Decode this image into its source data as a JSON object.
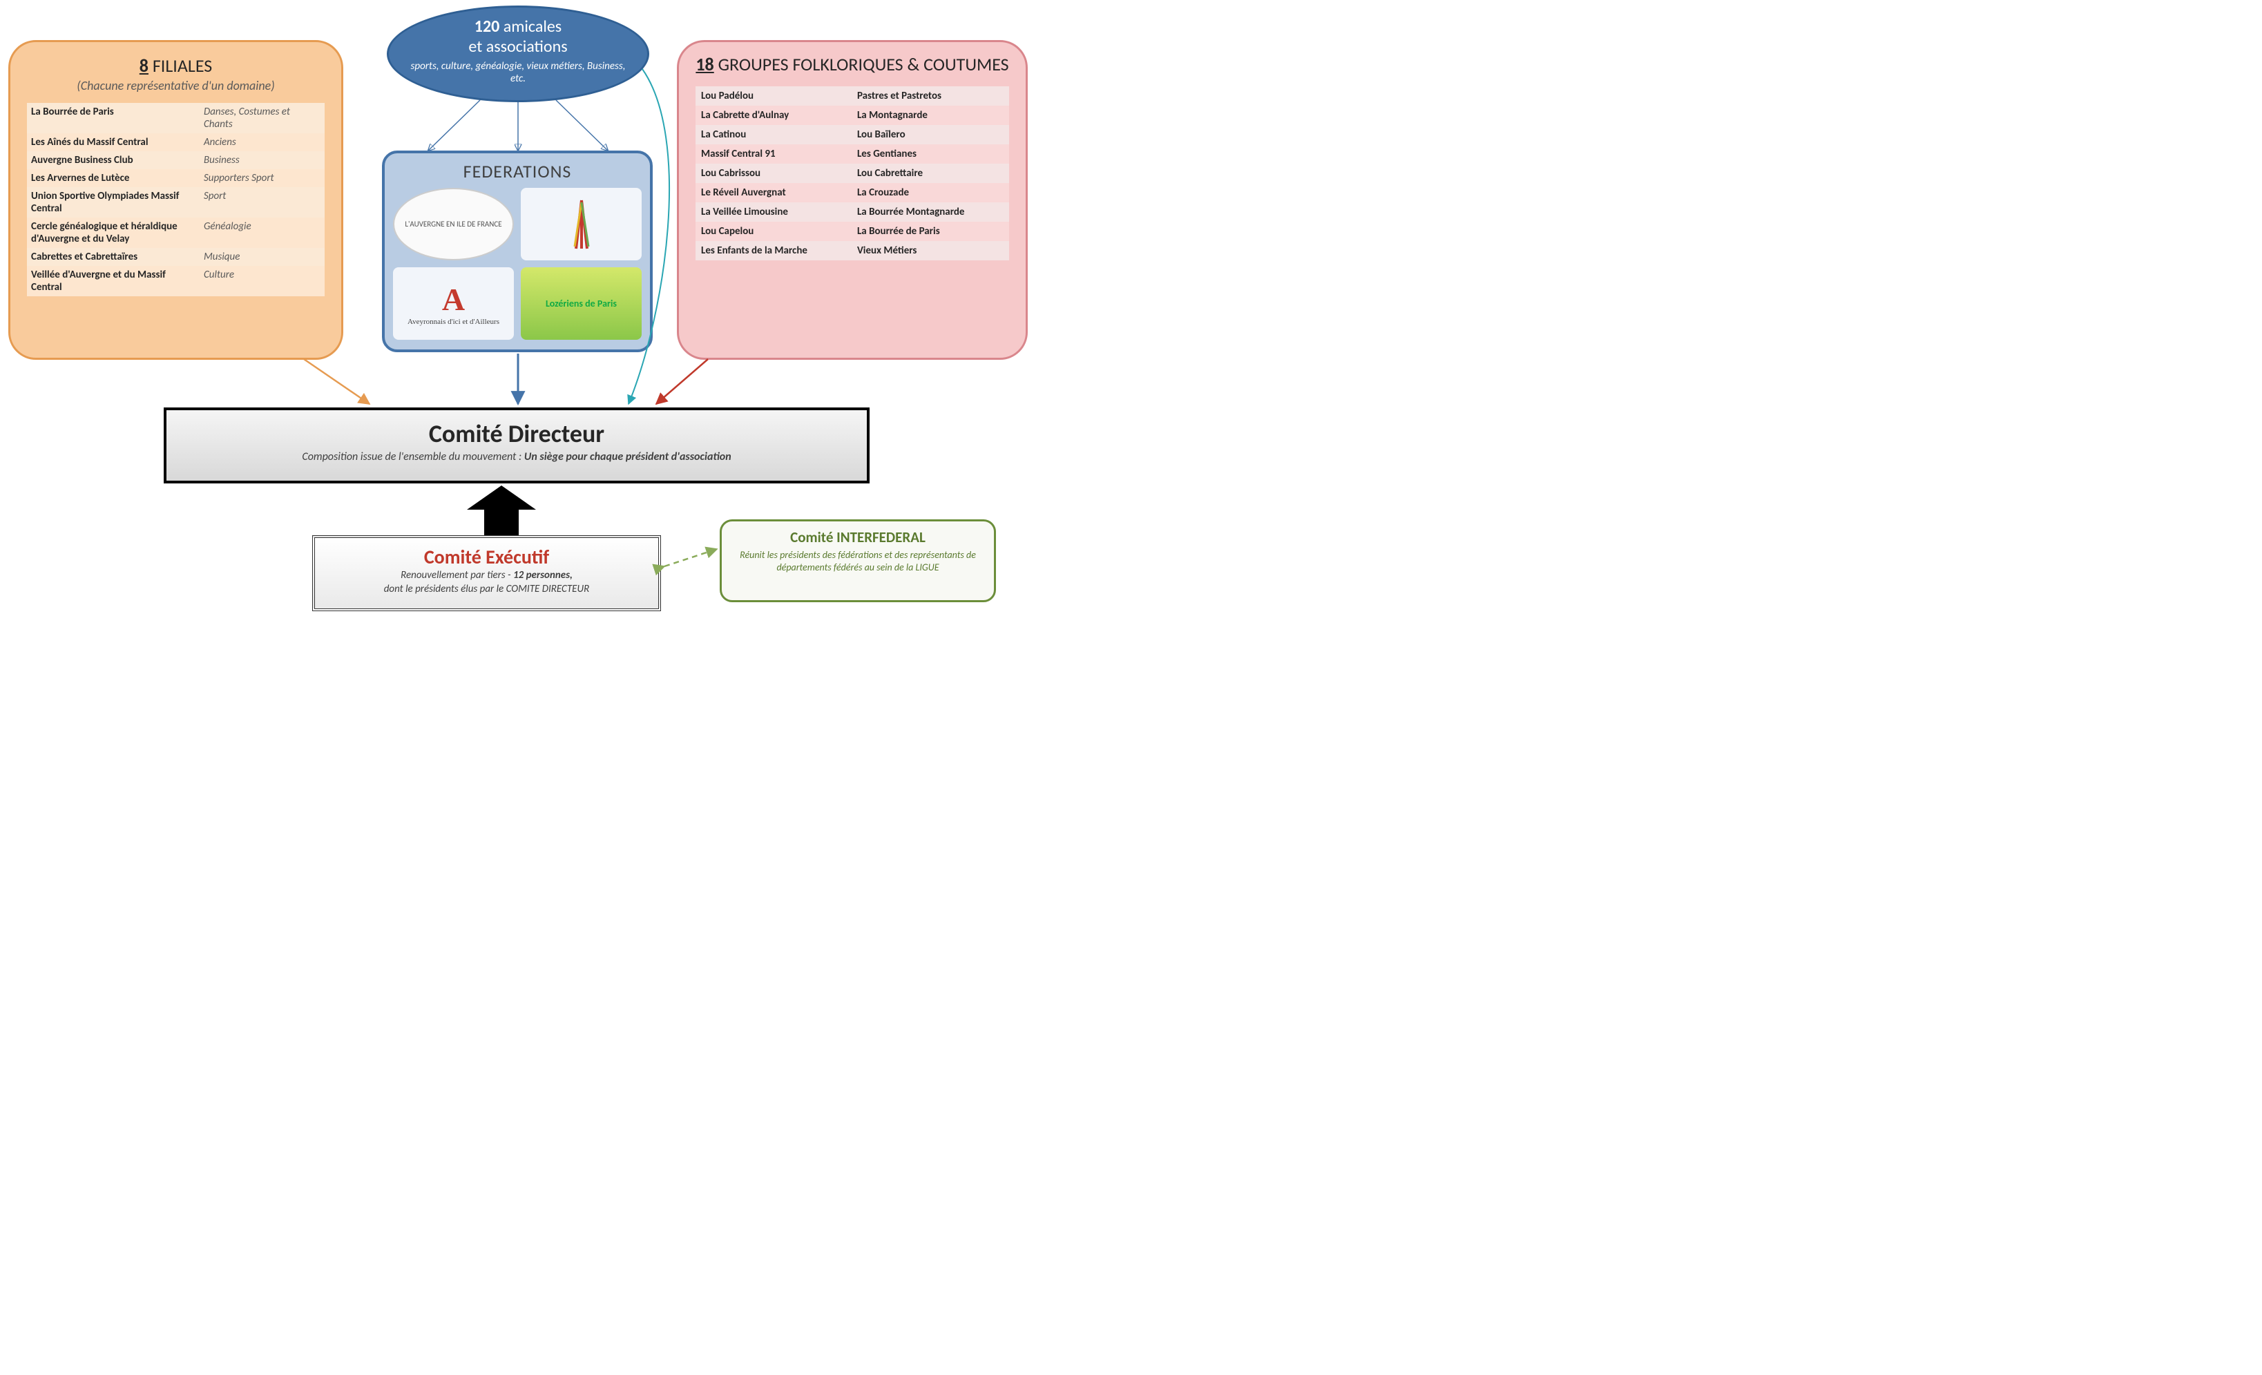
{
  "amicales": {
    "count": "120",
    "word": " amicales",
    "line2": "et associations",
    "subtitle": "sports, culture, généalogie, vieux métiers, Business, etc."
  },
  "filiales": {
    "count": "8",
    "title": " FILIALES",
    "subtitle": "(Chacune représentative d'un domaine)",
    "rows": [
      {
        "name": "La Bourrée de Paris",
        "domain": "Danses, Costumes et Chants"
      },
      {
        "name": "Les  Aînés du Massif Central",
        "domain": "Anciens"
      },
      {
        "name": "Auvergne Business Club",
        "domain": "Business"
      },
      {
        "name": "Les Arvernes de Lutèce",
        "domain": "Supporters Sport"
      },
      {
        "name": "Union Sportive Olympiades Massif Central",
        "domain": "Sport"
      },
      {
        "name": "Cercle généalogique et héraldique d'Auvergne et du Velay",
        "domain": "Généalogie"
      },
      {
        "name": "Cabrettes et Cabrettaïres",
        "domain": "Musique"
      },
      {
        "name": "Veillée d'Auvergne et du Massif Central",
        "domain": "Culture"
      }
    ]
  },
  "folklore": {
    "count": "18",
    "title": " GROUPES FOLKLORIQUES & COUTUMES",
    "rows": [
      [
        "Lou Padélou",
        "Pastres et Pastretos"
      ],
      [
        "La Cabrette d'Aulnay",
        "La Montagnarde"
      ],
      [
        "La Catinou",
        "Lou Baïlero"
      ],
      [
        "Massif Central 91",
        "Les Gentianes"
      ],
      [
        "Lou Cabrissou",
        "Lou Cabrettaire"
      ],
      [
        "Le Réveil Auvergnat",
        "La Crouzade"
      ],
      [
        "La Veillée Limousine",
        "La Bourrée Montagnarde"
      ],
      [
        "Lou Capelou",
        "La Bourrée de Paris"
      ],
      [
        "Les Enfants de la Marche",
        "Vieux Métiers"
      ]
    ]
  },
  "federations": {
    "title": "FEDERATIONS",
    "logos": [
      {
        "label": "L'AUVERGNE EN ILE DE FRANCE",
        "type": "circle"
      },
      {
        "label": "",
        "type": "eiffel"
      },
      {
        "label": "Aveyronnais d'ici et d'Ailleurs",
        "type": "red-a"
      },
      {
        "label": "Lozériens de Paris",
        "type": "loz"
      }
    ]
  },
  "directeur": {
    "title": "Comité Directeur",
    "subtitle_a": "Composition issue de l'ensemble du mouvement : ",
    "subtitle_b": "Un siège pour chaque président d'association"
  },
  "executif": {
    "title": "Comité Exécutif",
    "line_a": "Renouvellement par tiers - ",
    "line_b": "12 personnes,",
    "line_c": "dont le présidents élus par le COMITE DIRECTEUR"
  },
  "interfed": {
    "title": "Comité INTERFEDERAL",
    "body": "Réunit les présidents des fédérations et des représentants de départements fédérés au sein de la LIGUE"
  },
  "palette": {
    "orange": "#e69b51",
    "pink": "#d9868c",
    "blue": "#4574a9",
    "teal": "#2aa6b3",
    "green_dash": "#8aab5a"
  }
}
